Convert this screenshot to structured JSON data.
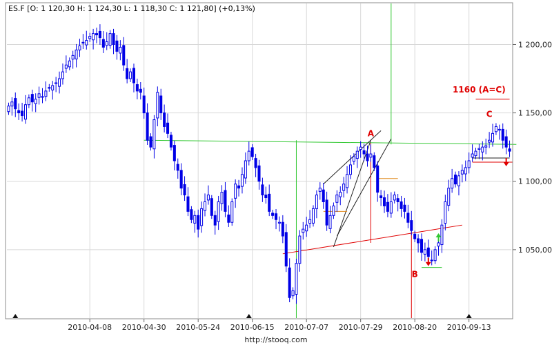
{
  "legend_text": "ES.F [O: 1 120,30  H: 1 124,30  L: 1 118,30  C: 1 121,80] (+0,13%)",
  "footer_url": "http://stooq.com",
  "colors": {
    "candle": "#0000e6",
    "grid": "#d8d8d8",
    "green": "#32c832",
    "red": "#e00000",
    "orange": "#e08a1e",
    "dark": "#222222"
  },
  "chart_data": {
    "type": "candlestick",
    "ylim": [
      1000,
      1230
    ],
    "y_ticks": [
      {
        "value": 1050,
        "label": "1 050,00"
      },
      {
        "value": 1100,
        "label": "1 100,00"
      },
      {
        "value": 1150,
        "label": "1 150,00"
      },
      {
        "value": 1200,
        "label": "1 200,00"
      }
    ],
    "x_ticks": [
      {
        "index": 24,
        "label": "2010-04-08"
      },
      {
        "index": 40,
        "label": "2010-04-30"
      },
      {
        "index": 56,
        "label": "2010-05-24"
      },
      {
        "index": 72,
        "label": "2010-06-15"
      },
      {
        "index": 88,
        "label": "2010-07-07"
      },
      {
        "index": 104,
        "label": "2010-07-29"
      },
      {
        "index": 120,
        "label": "2010-08-20"
      },
      {
        "index": 136,
        "label": "2010-09-13"
      }
    ],
    "markers": [
      2,
      71,
      136
    ],
    "closes": [
      1155,
      1158,
      1153,
      1150,
      1148,
      1156,
      1161,
      1158,
      1160,
      1164,
      1162,
      1166,
      1168,
      1170,
      1172,
      1175,
      1180,
      1185,
      1188,
      1192,
      1196,
      1199,
      1201,
      1203,
      1206,
      1208,
      1207,
      1205,
      1198,
      1202,
      1208,
      1200,
      1195,
      1198,
      1185,
      1175,
      1180,
      1172,
      1166,
      1165,
      1150,
      1130,
      1125,
      1145,
      1165,
      1150,
      1140,
      1135,
      1125,
      1115,
      1108,
      1095,
      1090,
      1078,
      1072,
      1075,
      1065,
      1080,
      1085,
      1090,
      1075,
      1068,
      1085,
      1092,
      1078,
      1070,
      1085,
      1098,
      1095,
      1105,
      1115,
      1122,
      1118,
      1110,
      1100,
      1090,
      1088,
      1078,
      1075,
      1072,
      1070,
      1060,
      1038,
      1015,
      1020,
      1040,
      1060,
      1065,
      1068,
      1072,
      1080,
      1090,
      1095,
      1085,
      1068,
      1075,
      1082,
      1090,
      1092,
      1098,
      1105,
      1112,
      1118,
      1122,
      1125,
      1120,
      1115,
      1120,
      1110,
      1092,
      1088,
      1082,
      1078,
      1085,
      1090,
      1085,
      1080,
      1078,
      1070,
      1064,
      1058,
      1055,
      1048,
      1050,
      1045,
      1042,
      1050,
      1055,
      1068,
      1085,
      1095,
      1102,
      1098,
      1104,
      1108,
      1110,
      1115,
      1120,
      1122,
      1124,
      1125,
      1126,
      1130,
      1135,
      1140,
      1138,
      1130,
      1125,
      1122
    ],
    "annotations": [
      {
        "label": "A",
        "index": 107,
        "value": 1133
      },
      {
        "label": "B",
        "index": 120,
        "value": 1030
      },
      {
        "label": "C",
        "index": 142,
        "value": 1147
      },
      {
        "label": "1160 (A=C)",
        "index": 139,
        "value": 1165
      }
    ],
    "lines": [
      {
        "color": "green",
        "points": [
          [
            40,
            1130
          ],
          [
            150,
            1127
          ]
        ]
      },
      {
        "color": "green",
        "points": [
          [
            85,
            1130
          ],
          [
            85,
            1000
          ]
        ]
      },
      {
        "color": "green",
        "points": [
          [
            113,
            1230
          ],
          [
            113,
            1127
          ]
        ]
      },
      {
        "color": "red",
        "points": [
          [
            81,
            1047
          ],
          [
            134,
            1068
          ]
        ]
      },
      {
        "color": "red",
        "points": [
          [
            107,
            1128
          ],
          [
            107,
            1055
          ]
        ]
      },
      {
        "color": "red",
        "points": [
          [
            119,
            1066
          ],
          [
            119,
            1000
          ]
        ]
      },
      {
        "color": "red",
        "points": [
          [
            137,
            1114
          ],
          [
            149,
            1114
          ]
        ]
      },
      {
        "color": "red",
        "points": [
          [
            138,
            1160
          ],
          [
            148,
            1160
          ]
        ]
      },
      {
        "color": "dark",
        "points": [
          [
            93,
            1098
          ],
          [
            110,
            1137
          ]
        ]
      },
      {
        "color": "dark",
        "points": [
          [
            97,
            1060
          ],
          [
            113,
            1131
          ]
        ]
      },
      {
        "color": "dark",
        "points": [
          [
            96,
            1052
          ],
          [
            107,
            1130
          ]
        ]
      },
      {
        "color": "dark",
        "points": [
          [
            137,
            1117
          ],
          [
            148,
            1117
          ]
        ]
      },
      {
        "color": "orange",
        "points": [
          [
            109,
            1102
          ],
          [
            115,
            1102
          ]
        ]
      },
      {
        "color": "orange",
        "points": [
          [
            93,
            1078
          ],
          [
            100,
            1078
          ]
        ]
      },
      {
        "color": "green",
        "points": [
          [
            122,
            1037
          ],
          [
            128,
            1037
          ]
        ]
      }
    ],
    "arrows": [
      {
        "index": 127,
        "value": 1060,
        "direction": "up",
        "color": "green"
      },
      {
        "index": 124,
        "value": 1040,
        "direction": "down",
        "color": "red"
      },
      {
        "index": 147,
        "value": 1113,
        "direction": "down",
        "color": "red"
      }
    ]
  }
}
